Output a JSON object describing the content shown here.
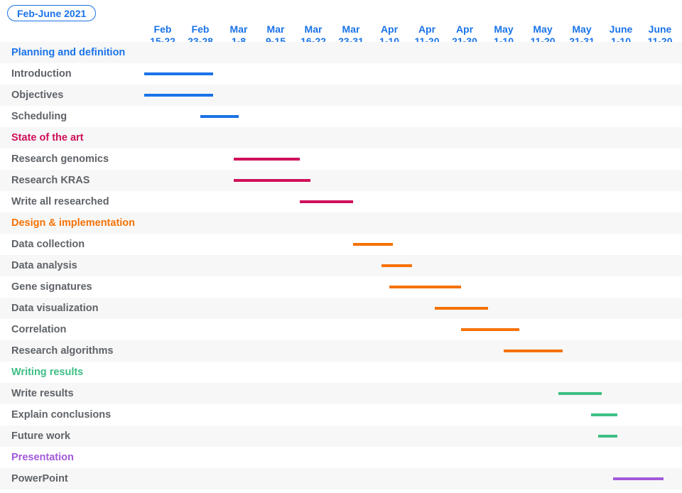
{
  "title": "Feb-June 2021",
  "colors": {
    "Planning and definition": "#1a73e8",
    "State of the art": "#d0105a",
    "Design & implementation": "#f57207",
    "Writing results": "#3dbf84",
    "Presentation": "#a259d9",
    "task_text": "#5f6368"
  },
  "columns": [
    {
      "month": "Feb",
      "days": "15-22"
    },
    {
      "month": "Feb",
      "days": "23-28"
    },
    {
      "month": "Mar",
      "days": "1-8"
    },
    {
      "month": "Mar",
      "days": "9-15"
    },
    {
      "month": "Mar",
      "days": "16-22"
    },
    {
      "month": "Mar",
      "days": "23-31"
    },
    {
      "month": "Apr",
      "days": "1-10"
    },
    {
      "month": "Apr",
      "days": "11-20"
    },
    {
      "month": "Apr",
      "days": "21-30"
    },
    {
      "month": "May",
      "days": "1-10"
    },
    {
      "month": "May",
      "days": "11-20"
    },
    {
      "month": "May",
      "days": "21-31"
    },
    {
      "month": "June",
      "days": "1-10"
    },
    {
      "month": "June",
      "days": "11-20"
    }
  ],
  "chart_data": {
    "type": "gantt",
    "title": "Feb-June 2021",
    "x_unit": "date (2021)",
    "rows": [
      {
        "label": "Planning and definition",
        "group": true,
        "category": "Planning and definition"
      },
      {
        "label": "Introduction",
        "category": "Planning and definition",
        "start": "2021-02-15",
        "end": "2021-02-27"
      },
      {
        "label": "Objectives",
        "category": "Planning and definition",
        "start": "2021-02-15",
        "end": "2021-02-27"
      },
      {
        "label": "Scheduling",
        "category": "Planning and definition",
        "start": "2021-02-26",
        "end": "2021-03-04"
      },
      {
        "label": "State of the art",
        "group": true,
        "category": "State of the art"
      },
      {
        "label": "Research genomics",
        "category": "State of the art",
        "start": "2021-03-04",
        "end": "2021-03-16"
      },
      {
        "label": "Research KRAS",
        "category": "State of the art",
        "start": "2021-03-04",
        "end": "2021-03-18"
      },
      {
        "label": "Write all researched",
        "category": "State of the art",
        "start": "2021-03-17",
        "end": "2021-03-27"
      },
      {
        "label": "Design & implementation",
        "group": true,
        "category": "Design & implementation"
      },
      {
        "label": "Data collection",
        "category": "Design & implementation",
        "start": "2021-03-28",
        "end": "2021-04-06"
      },
      {
        "label": "Data analysis",
        "category": "Design & implementation",
        "start": "2021-04-04",
        "end": "2021-04-11"
      },
      {
        "label": "Gene signatures",
        "category": "Design & implementation",
        "start": "2021-04-06",
        "end": "2021-04-24"
      },
      {
        "label": "Data visualization",
        "category": "Design & implementation",
        "start": "2021-04-18",
        "end": "2021-05-01"
      },
      {
        "label": "Correlation",
        "category": "Design & implementation",
        "start": "2021-04-25",
        "end": "2021-05-09"
      },
      {
        "label": "Research algorithms",
        "category": "Design & implementation",
        "start": "2021-05-06",
        "end": "2021-05-20"
      },
      {
        "label": "Writing results",
        "group": true,
        "category": "Writing results"
      },
      {
        "label": "Write results",
        "category": "Writing results",
        "start": "2021-05-20",
        "end": "2021-05-31"
      },
      {
        "label": "Explain conclusions",
        "category": "Writing results",
        "start": "2021-05-29",
        "end": "2021-06-04"
      },
      {
        "label": "Future work",
        "category": "Writing results",
        "start": "2021-05-31",
        "end": "2021-06-04"
      },
      {
        "label": "Presentation",
        "group": true,
        "category": "Presentation"
      },
      {
        "label": "PowerPoint",
        "category": "Presentation",
        "start": "2021-06-04",
        "end": "2021-06-16"
      }
    ]
  }
}
